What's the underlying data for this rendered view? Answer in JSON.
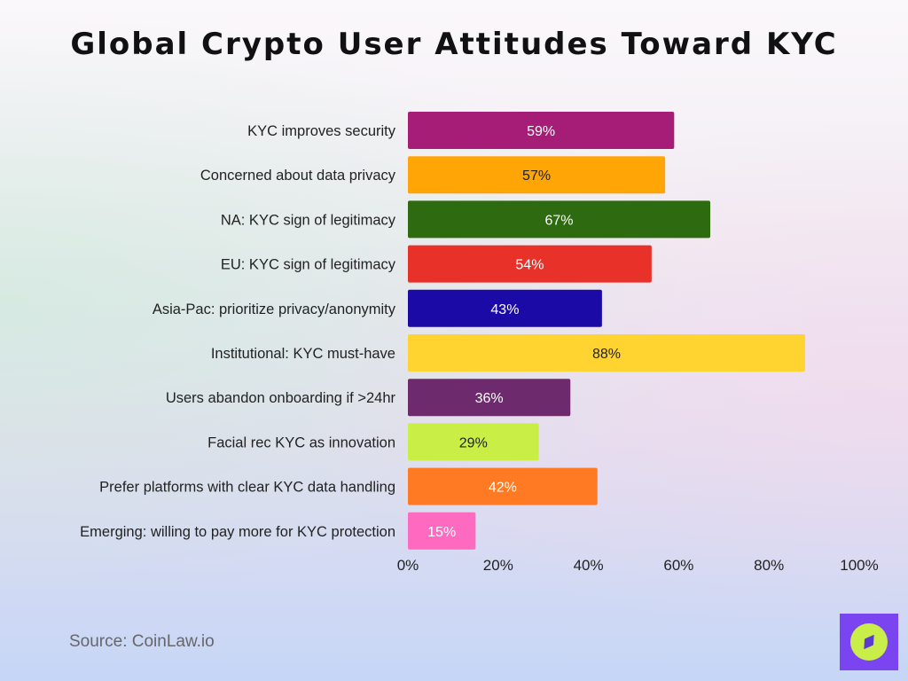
{
  "chart_data": {
    "type": "bar",
    "orientation": "horizontal",
    "title": "Global Crypto User Attitudes Toward KYC",
    "categories": [
      "KYC improves security",
      "Concerned about data privacy",
      "NA: KYC sign of legitimacy",
      "EU: KYC sign of legitimacy",
      "Asia-Pac: prioritize privacy/anonymity",
      "Institutional: KYC must-have",
      "Users abandon onboarding if >24hr",
      "Facial rec KYC as innovation",
      "Prefer platforms with clear KYC data handling",
      "Emerging: willing to pay more for KYC protection"
    ],
    "values": [
      59,
      57,
      67,
      54,
      43,
      88,
      36,
      29,
      42,
      15
    ],
    "data_labels": [
      "59%",
      "57%",
      "67%",
      "54%",
      "43%",
      "88%",
      "36%",
      "29%",
      "42%",
      "15%"
    ],
    "colors": [
      "#a61d78",
      "#ffa505",
      "#2e6a10",
      "#e83229",
      "#1c0aa6",
      "#ffd430",
      "#6d2a6c",
      "#c9ee45",
      "#ff7a22",
      "#ff6ac1"
    ],
    "label_colors": [
      "#ffffff",
      "#222222",
      "#ffffff",
      "#ffffff",
      "#ffffff",
      "#222222",
      "#ffffff",
      "#222222",
      "#ffffff",
      "#ffffff"
    ],
    "xlim": [
      0,
      100
    ],
    "x_ticks": [
      "0%",
      "20%",
      "40%",
      "60%",
      "80%",
      "100%"
    ],
    "grid": false,
    "legend": "none"
  },
  "footer": {
    "source": "Source: CoinLaw.io",
    "logo_icon": "compass-icon"
  }
}
